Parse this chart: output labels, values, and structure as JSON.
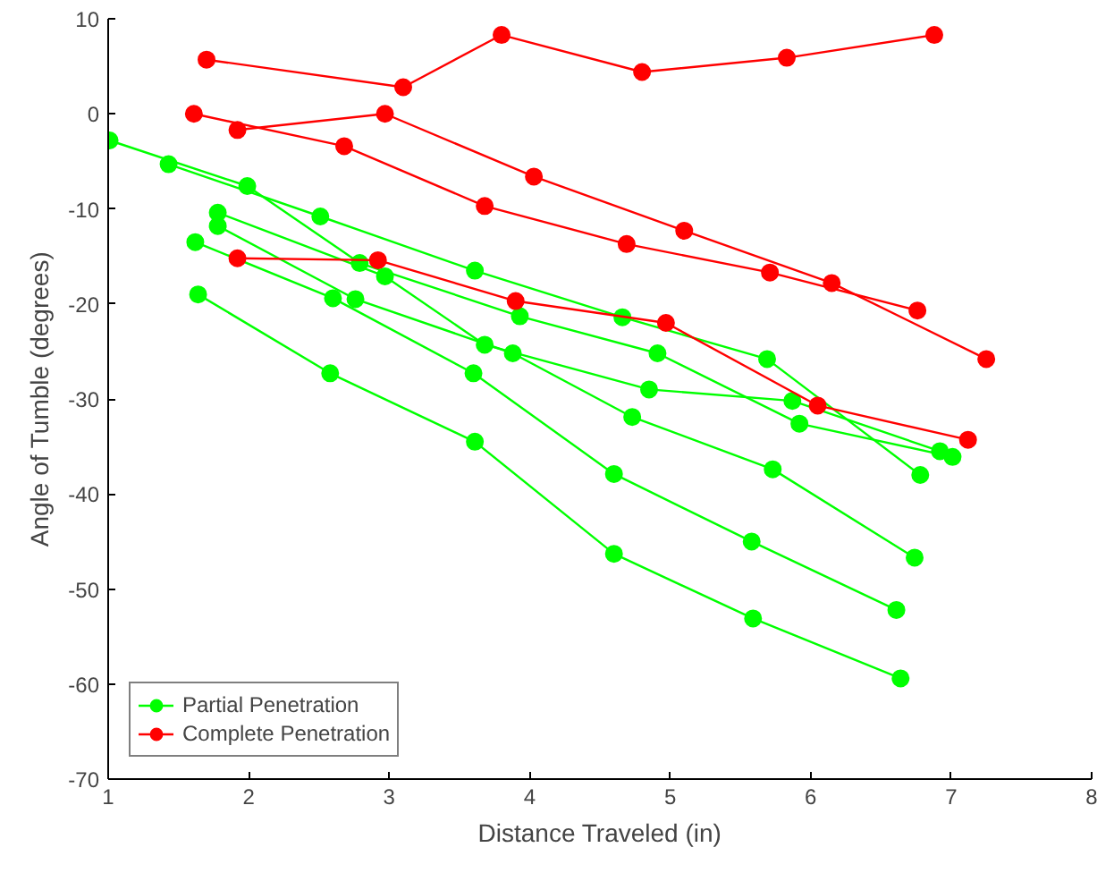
{
  "chart_data": {
    "type": "line",
    "xlabel": "Distance Traveled (in)",
    "ylabel": "Angle of Tumble (degrees)",
    "xlim": [
      1,
      8
    ],
    "xticks": [
      1,
      2,
      3,
      4,
      5,
      6,
      7,
      8
    ],
    "ylim": [
      -70,
      10
    ],
    "yticks": [
      -70,
      -60,
      -50,
      -40,
      -30,
      -20,
      -10,
      0,
      10
    ],
    "grid": false,
    "legend": "bottom left",
    "marker": "circle",
    "line_style": "solid",
    "series": [
      {
        "name": "Partial Penetration",
        "color": "#00ff00",
        "x": [
          1.01,
          1.99,
          2.79,
          3.93,
          4.91,
          5.92,
          7.01
        ],
        "values": [
          -2.8,
          -7.6,
          -15.7,
          -21.3,
          -25.2,
          -32.6,
          -36.1
        ]
      },
      {
        "color": "#00ff00",
        "x": [
          1.43,
          2.51,
          3.61,
          4.66,
          5.69,
          6.78
        ],
        "values": [
          -5.3,
          -10.8,
          -16.5,
          -21.4,
          -25.8,
          -38.0
        ]
      },
      {
        "color": "#00ff00",
        "x": [
          1.78,
          2.97,
          3.68,
          4.85,
          5.87,
          6.92
        ],
        "values": [
          -10.4,
          -17.1,
          -24.3,
          -29.0,
          -30.2,
          -35.5
        ]
      },
      {
        "color": "#00ff00",
        "x": [
          1.78,
          2.76,
          3.88,
          4.73,
          5.73,
          6.74
        ],
        "values": [
          -11.8,
          -19.5,
          -25.2,
          -31.9,
          -37.4,
          -46.7
        ]
      },
      {
        "color": "#00ff00",
        "x": [
          1.62,
          2.6,
          3.6,
          4.6,
          5.58,
          6.61
        ],
        "values": [
          -13.5,
          -19.4,
          -27.3,
          -37.9,
          -45.0,
          -52.2
        ]
      },
      {
        "color": "#00ff00",
        "x": [
          1.64,
          2.58,
          3.61,
          4.6,
          5.59,
          6.64
        ],
        "values": [
          -19.0,
          -27.3,
          -34.5,
          -46.3,
          -53.1,
          -59.4
        ]
      },
      {
        "name": "Complete Penetration",
        "color": "#ff0000",
        "x": [
          1.7,
          3.1,
          3.8,
          4.8,
          5.83,
          6.88
        ],
        "values": [
          5.7,
          2.8,
          8.3,
          4.4,
          5.9,
          8.3
        ]
      },
      {
        "color": "#ff0000",
        "x": [
          1.61,
          2.68,
          3.68,
          4.69,
          5.71,
          6.76
        ],
        "values": [
          0,
          -3.4,
          -9.7,
          -13.7,
          -16.7,
          -20.7
        ]
      },
      {
        "color": "#ff0000",
        "x": [
          1.92,
          2.97,
          4.03,
          5.1,
          6.15,
          7.25
        ],
        "values": [
          -1.7,
          0,
          -6.6,
          -12.3,
          -17.8,
          -25.8
        ]
      },
      {
        "color": "#ff0000",
        "x": [
          1.92,
          2.92,
          3.9,
          4.97,
          6.05,
          7.12
        ],
        "values": [
          -15.2,
          -15.4,
          -19.7,
          -22.0,
          -30.7,
          -34.3
        ]
      }
    ]
  }
}
